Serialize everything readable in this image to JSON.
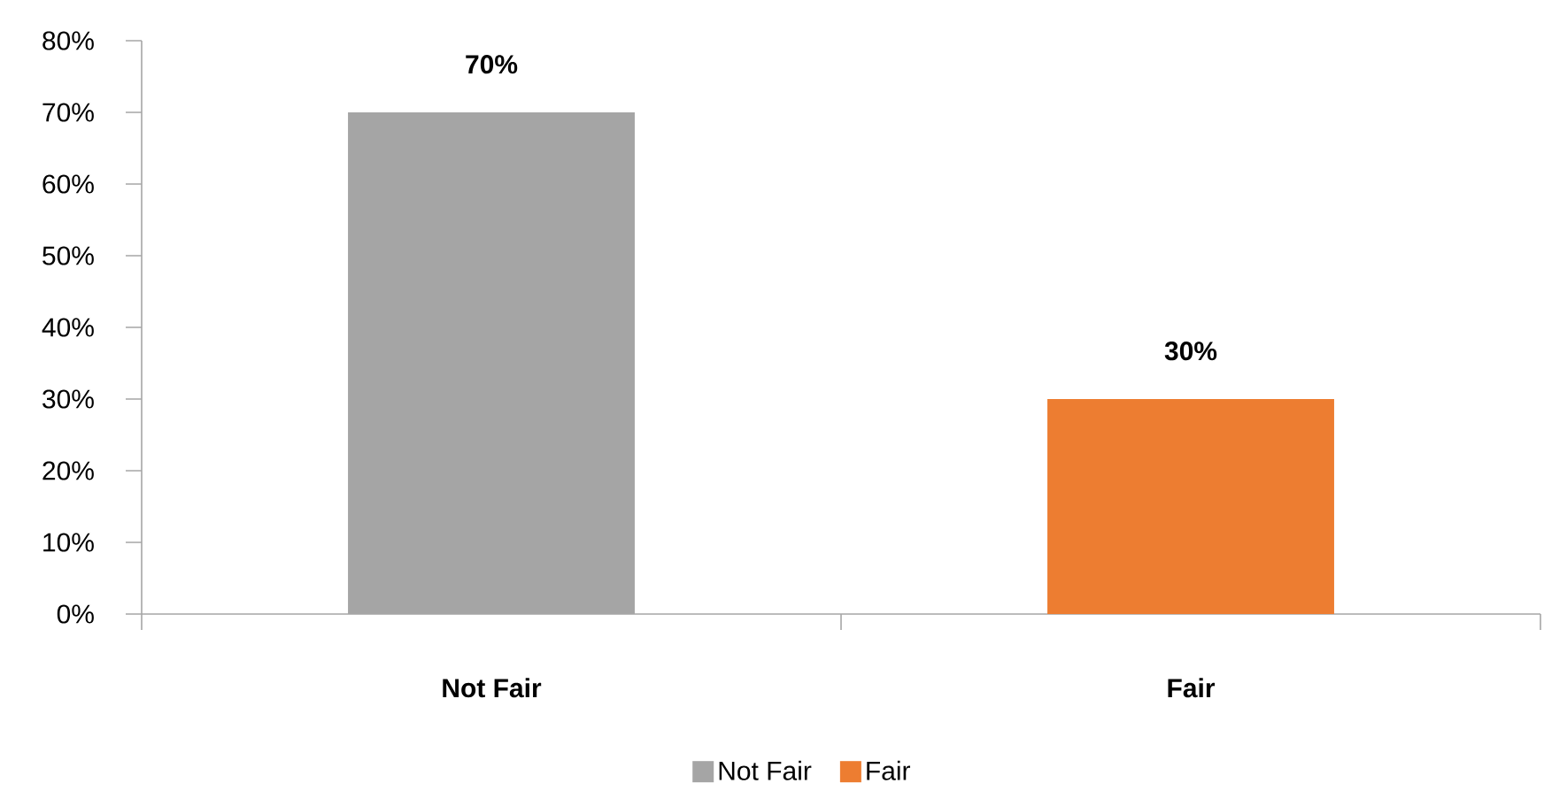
{
  "chart_data": {
    "type": "bar",
    "categories": [
      "Not Fair",
      "Fair"
    ],
    "series": [
      {
        "name": "Not Fair",
        "color": "#a5a5a5",
        "values": [
          70,
          null
        ],
        "value_labels": [
          "70%",
          null
        ]
      },
      {
        "name": "Fair",
        "color": "#ed7d31",
        "values": [
          null,
          30
        ],
        "value_labels": [
          null,
          "30%"
        ]
      }
    ],
    "ylim": [
      0,
      80
    ],
    "yticks": [
      {
        "value": 0,
        "label": "0%"
      },
      {
        "value": 10,
        "label": "10%"
      },
      {
        "value": 20,
        "label": "20%"
      },
      {
        "value": 30,
        "label": "30%"
      },
      {
        "value": 40,
        "label": "40%"
      },
      {
        "value": 50,
        "label": "50%"
      },
      {
        "value": 60,
        "label": "60%"
      },
      {
        "value": 70,
        "label": "70%"
      },
      {
        "value": 80,
        "label": "80%"
      }
    ],
    "legend": "bottom"
  }
}
